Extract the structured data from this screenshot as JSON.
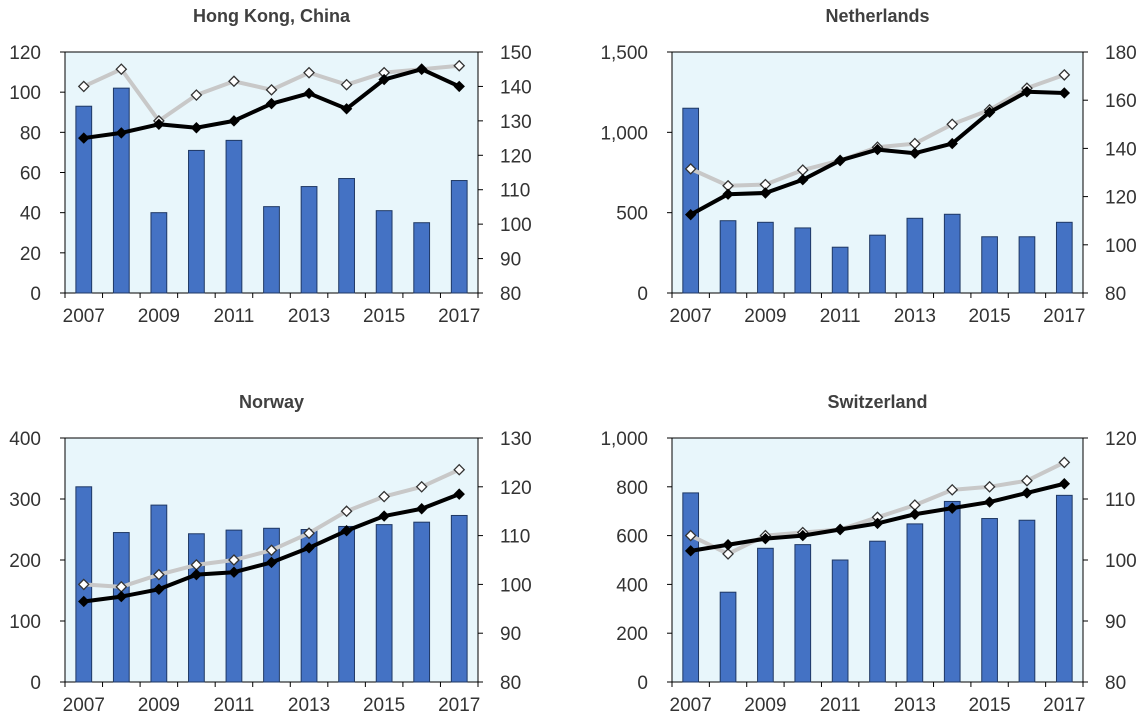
{
  "colors": {
    "bar_fill": "#4472C4",
    "bar_stroke": "#1F3864",
    "plot_bg": "#E8F6FB",
    "black_line": "#000000",
    "grey_line": "#C8C8C8"
  },
  "chart_data": [
    {
      "type": "bar+line",
      "title": "Hong Kong, China",
      "x": [
        2007,
        2008,
        2009,
        2010,
        2011,
        2012,
        2013,
        2014,
        2015,
        2016,
        2017
      ],
      "x_tick_labels": [
        "2007",
        "2009",
        "2011",
        "2013",
        "2015",
        "2017"
      ],
      "left_axis": {
        "ylim": [
          0,
          120
        ],
        "ticks": [
          "0",
          "20",
          "40",
          "60",
          "80",
          "100",
          "120"
        ]
      },
      "right_axis": {
        "ylim": [
          80,
          150
        ],
        "ticks": [
          "80",
          "90",
          "100",
          "110",
          "120",
          "130",
          "140",
          "150"
        ]
      },
      "bars": [
        93,
        102,
        40,
        71,
        76,
        43,
        53,
        57,
        41,
        35,
        56
      ],
      "black_line": [
        125,
        126.5,
        129,
        128,
        130,
        135,
        138,
        133.5,
        142,
        145,
        140
      ],
      "grey_line": [
        140,
        145,
        130,
        137.5,
        141.5,
        139,
        144,
        140.5,
        144,
        145,
        146
      ]
    },
    {
      "type": "bar+line",
      "title": "Netherlands",
      "x": [
        2007,
        2008,
        2009,
        2010,
        2011,
        2012,
        2013,
        2014,
        2015,
        2016,
        2017
      ],
      "x_tick_labels": [
        "2007",
        "2009",
        "2011",
        "2013",
        "2015",
        "2017"
      ],
      "left_axis": {
        "ylim": [
          0,
          1500
        ],
        "ticks": [
          "0",
          "500",
          "1,000",
          "1,500"
        ]
      },
      "right_axis": {
        "ylim": [
          80,
          180
        ],
        "ticks": [
          "80",
          "100",
          "120",
          "140",
          "160",
          "180"
        ]
      },
      "bars": [
        1150,
        450,
        440,
        405,
        285,
        360,
        465,
        490,
        350,
        350,
        440
      ],
      "black_line": [
        112.5,
        121,
        121.5,
        127,
        135,
        139.5,
        138,
        142,
        155,
        163.5,
        163
      ],
      "grey_line": [
        131.5,
        124.5,
        125,
        131,
        135,
        140.5,
        142,
        150,
        156,
        165,
        170.5
      ]
    },
    {
      "type": "bar+line",
      "title": "Norway",
      "x": [
        2007,
        2008,
        2009,
        2010,
        2011,
        2012,
        2013,
        2014,
        2015,
        2016,
        2017
      ],
      "x_tick_labels": [
        "2007",
        "2009",
        "2011",
        "2013",
        "2015",
        "2017"
      ],
      "left_axis": {
        "ylim": [
          0,
          400
        ],
        "ticks": [
          "0",
          "100",
          "200",
          "300",
          "400"
        ]
      },
      "right_axis": {
        "ylim": [
          80,
          130
        ],
        "ticks": [
          "80",
          "90",
          "100",
          "110",
          "120",
          "130"
        ]
      },
      "bars": [
        320,
        245,
        290,
        243,
        249,
        252,
        250,
        255,
        258,
        262,
        273
      ],
      "black_line": [
        96.5,
        97.5,
        99,
        102,
        102.5,
        104.5,
        107.5,
        111,
        114,
        115.5,
        118.5
      ],
      "grey_line": [
        100,
        99.5,
        102,
        104,
        105,
        107,
        110.5,
        115,
        118,
        120,
        123.5
      ]
    },
    {
      "type": "bar+line",
      "title": "Switzerland",
      "x": [
        2007,
        2008,
        2009,
        2010,
        2011,
        2012,
        2013,
        2014,
        2015,
        2016,
        2017
      ],
      "x_tick_labels": [
        "2007",
        "2009",
        "2011",
        "2013",
        "2015",
        "2017"
      ],
      "left_axis": {
        "ylim": [
          0,
          1000
        ],
        "ticks": [
          "0",
          "200",
          "400",
          "600",
          "800",
          "1,000"
        ]
      },
      "right_axis": {
        "ylim": [
          80,
          120
        ],
        "ticks": [
          "80",
          "90",
          "100",
          "110",
          "120"
        ]
      },
      "bars": [
        775,
        368,
        548,
        563,
        500,
        577,
        648,
        740,
        670,
        663,
        765
      ],
      "black_line": [
        101.5,
        102.5,
        103.5,
        104,
        105,
        106,
        107.5,
        108.5,
        109.5,
        111,
        112.5
      ],
      "grey_line": [
        104,
        101,
        104,
        104.5,
        105,
        107,
        109,
        111.5,
        112,
        113,
        116
      ]
    }
  ]
}
